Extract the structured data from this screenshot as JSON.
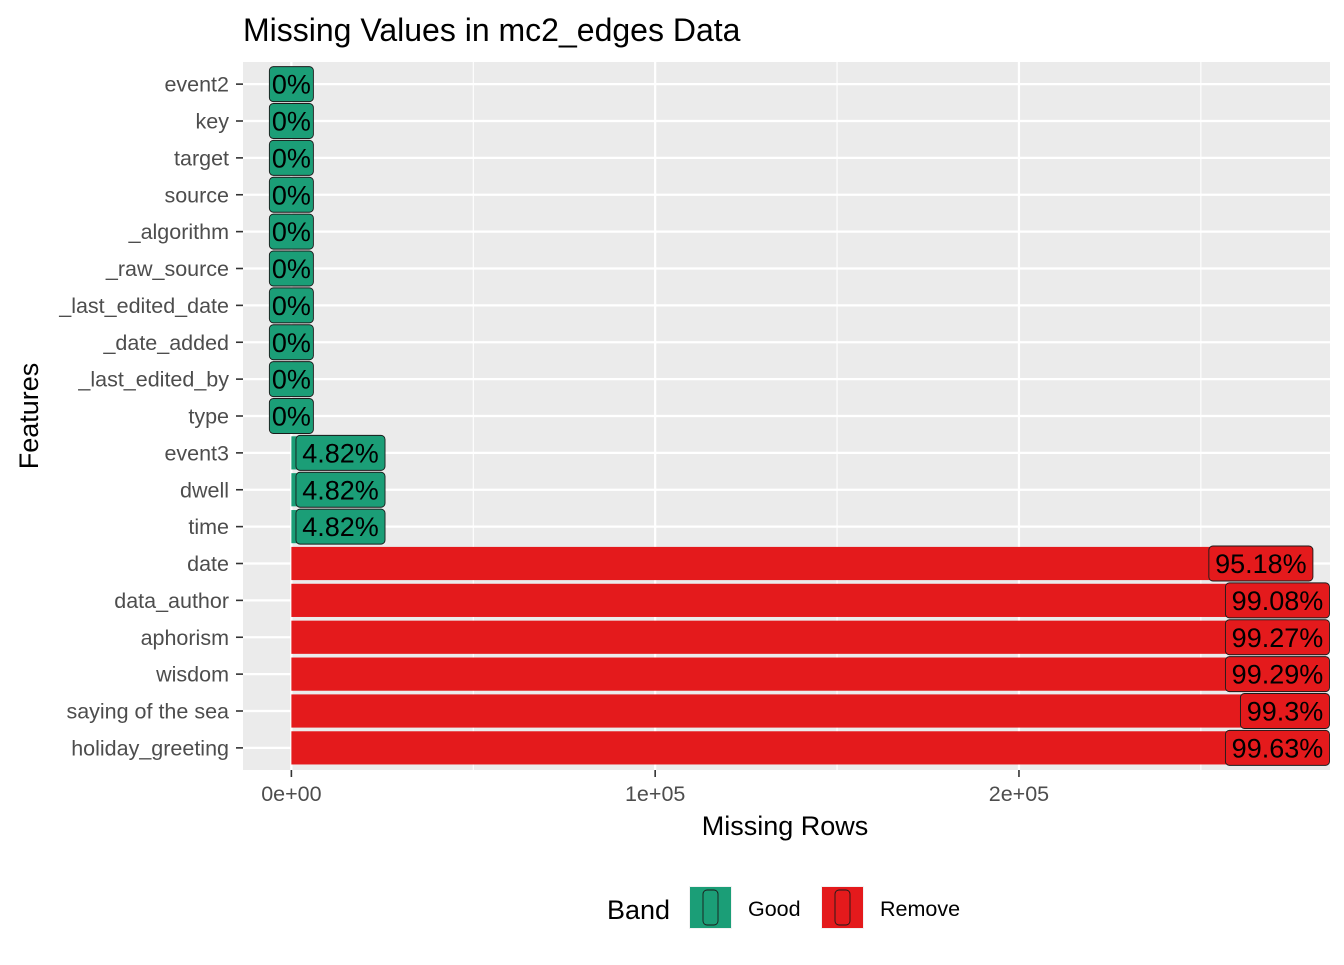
{
  "chart_data": {
    "type": "bar",
    "orientation": "horizontal",
    "title": "Missing Values in mc2_edges Data",
    "xlabel": "Missing Rows",
    "ylabel": "Features",
    "xlim": [
      -13300,
      285500
    ],
    "x_ticks": [
      {
        "value": 0,
        "label": "0e+00"
      },
      {
        "value": 100000,
        "label": "1e+05"
      },
      {
        "value": 200000,
        "label": "2e+05"
      }
    ],
    "grid": true,
    "legend": {
      "title": "Band",
      "position": "bottom",
      "entries": [
        {
          "label": "Good",
          "color": "#1b9e77"
        },
        {
          "label": "Remove",
          "color": "#e41a1c"
        }
      ]
    },
    "bars": [
      {
        "feature": "event2",
        "missing_rows": 0,
        "pct_label": "0%",
        "band": "Good"
      },
      {
        "feature": "key",
        "missing_rows": 0,
        "pct_label": "0%",
        "band": "Good"
      },
      {
        "feature": "target",
        "missing_rows": 0,
        "pct_label": "0%",
        "band": "Good"
      },
      {
        "feature": "source",
        "missing_rows": 0,
        "pct_label": "0%",
        "band": "Good"
      },
      {
        "feature": "_algorithm",
        "missing_rows": 0,
        "pct_label": "0%",
        "band": "Good"
      },
      {
        "feature": "_raw_source",
        "missing_rows": 0,
        "pct_label": "0%",
        "band": "Good"
      },
      {
        "feature": "_last_edited_date",
        "missing_rows": 0,
        "pct_label": "0%",
        "band": "Good"
      },
      {
        "feature": "_date_added",
        "missing_rows": 0,
        "pct_label": "0%",
        "band": "Good"
      },
      {
        "feature": "_last_edited_by",
        "missing_rows": 0,
        "pct_label": "0%",
        "band": "Good"
      },
      {
        "feature": "type",
        "missing_rows": 0,
        "pct_label": "0%",
        "band": "Good"
      },
      {
        "feature": "event3",
        "missing_rows": 13500,
        "pct_label": "4.82%",
        "band": "Good"
      },
      {
        "feature": "dwell",
        "missing_rows": 13500,
        "pct_label": "4.82%",
        "band": "Good"
      },
      {
        "feature": "time",
        "missing_rows": 13500,
        "pct_label": "4.82%",
        "band": "Good"
      },
      {
        "feature": "date",
        "missing_rows": 266500,
        "pct_label": "95.18%",
        "band": "Remove"
      },
      {
        "feature": "data_author",
        "missing_rows": 277400,
        "pct_label": "99.08%",
        "band": "Remove"
      },
      {
        "feature": "aphorism",
        "missing_rows": 278000,
        "pct_label": "99.27%",
        "band": "Remove"
      },
      {
        "feature": "wisdom",
        "missing_rows": 278000,
        "pct_label": "99.29%",
        "band": "Remove"
      },
      {
        "feature": "saying of the sea",
        "missing_rows": 278100,
        "pct_label": "99.3%",
        "band": "Remove"
      },
      {
        "feature": "holiday_greeting",
        "missing_rows": 279000,
        "pct_label": "99.63%",
        "band": "Remove"
      }
    ]
  }
}
